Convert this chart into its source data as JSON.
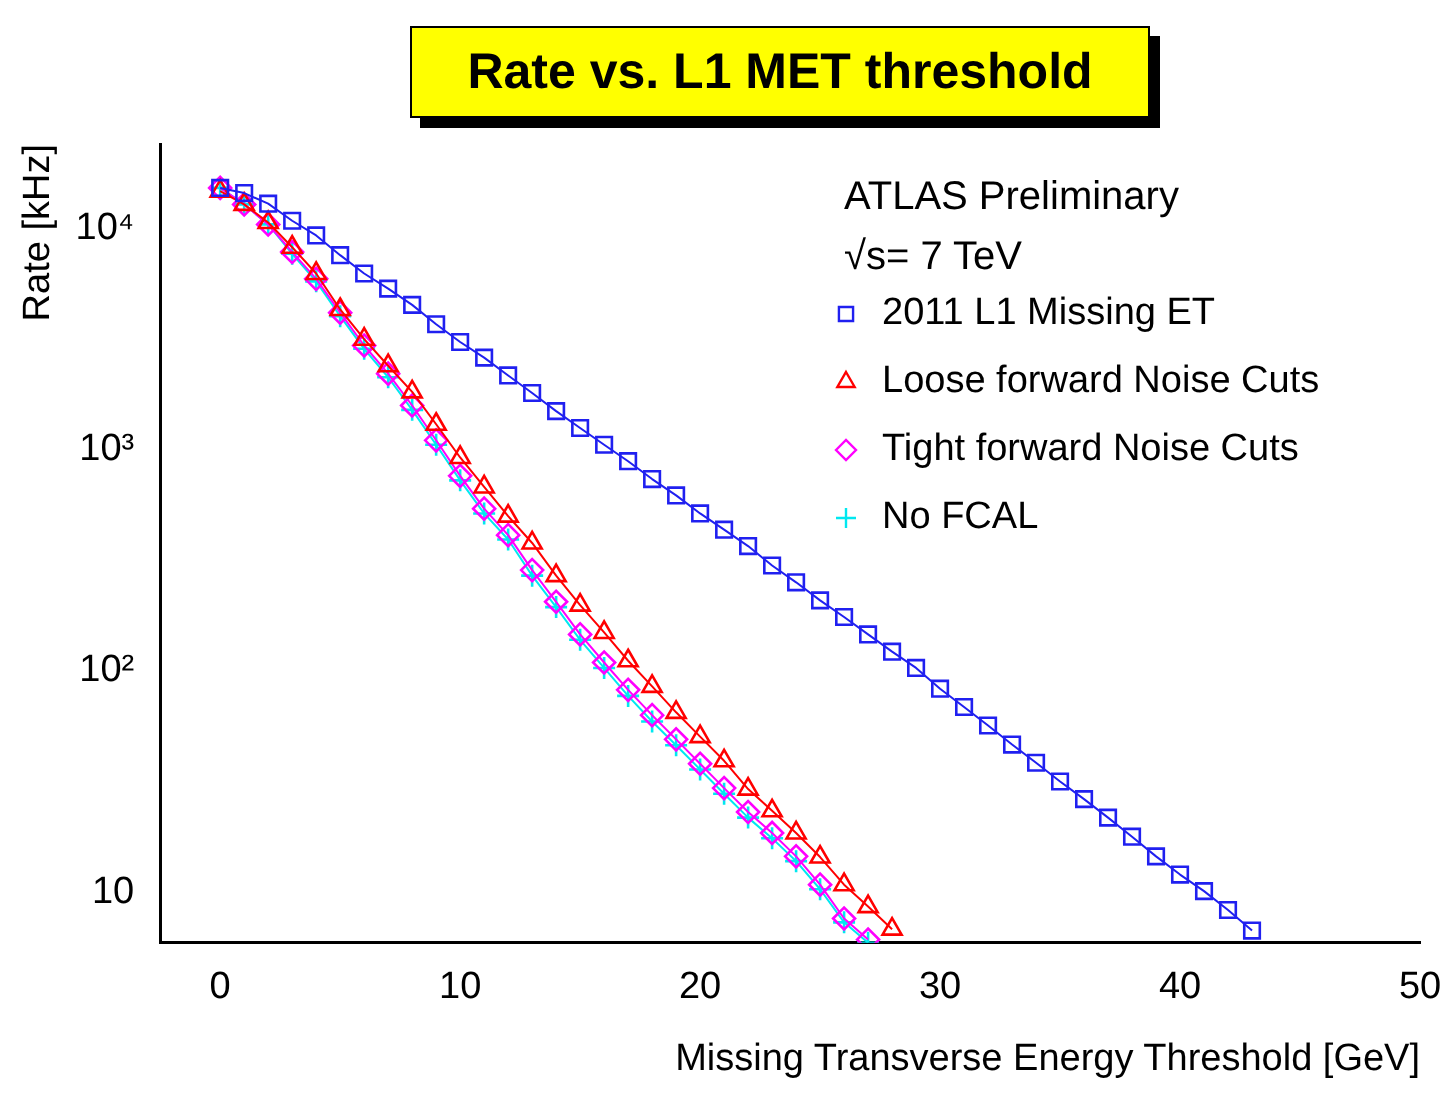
{
  "chart_data": {
    "type": "line",
    "title": "Rate vs. L1 MET threshold",
    "xlabel": "Missing Transverse Energy Threshold [GeV]",
    "ylabel": "Rate [kHz]",
    "annotations": [
      "ATLAS Preliminary",
      "√s= 7 TeV"
    ],
    "log": "y",
    "grid": false,
    "legend": "top right",
    "line_style": "solid",
    "xlim": [
      -2.5,
      50
    ],
    "xticks": [
      0,
      10,
      20,
      30,
      40,
      50
    ],
    "ylim": [
      5.9,
      24000
    ],
    "yticks": [
      10,
      {
        "value": 100,
        "label": "10²"
      },
      {
        "value": 1000,
        "label": "10³"
      },
      {
        "value": 10000,
        "label": "10⁴"
      }
    ],
    "series": [
      {
        "name": "2011 L1 Missing ET",
        "color": "#2020f0",
        "marker": "square",
        "x": [
          0,
          1,
          2,
          3,
          4,
          5,
          6,
          7,
          8,
          9,
          10,
          11,
          12,
          13,
          14,
          15,
          16,
          17,
          18,
          19,
          20,
          21,
          22,
          23,
          24,
          25,
          26,
          27,
          28,
          29,
          30,
          31,
          32,
          33,
          34,
          35,
          36,
          37,
          38,
          39,
          40,
          41,
          42,
          43
        ],
        "values": [
          15200,
          14400,
          12900,
          10800,
          9270,
          7550,
          6240,
          5330,
          4500,
          3680,
          3060,
          2600,
          2160,
          1800,
          1490,
          1250,
          1050,
          885,
          735,
          620,
          514,
          434,
          366,
          299,
          251,
          208,
          175,
          146,
          122,
          103,
          83,
          68.6,
          56.6,
          46.4,
          38.4,
          31.6,
          26.3,
          21.7,
          17.8,
          14.5,
          12.0,
          10.1,
          8.3,
          6.7
        ]
      },
      {
        "name": "Loose forward Noise Cuts",
        "color": "#ff0000",
        "marker": "triangle",
        "x": [
          0,
          1,
          2,
          3,
          4,
          5,
          6,
          7,
          8,
          9,
          10,
          11,
          12,
          13,
          14,
          15,
          16,
          17,
          18,
          19,
          20,
          21,
          22,
          23,
          24,
          25,
          26,
          27,
          28
        ],
        "values": [
          14700,
          12800,
          10600,
          8200,
          6240,
          4290,
          3150,
          2390,
          1820,
          1300,
          920,
          677,
          500,
          378,
          269,
          198,
          149,
          111,
          85,
          64.9,
          50.4,
          39.2,
          29.2,
          23.3,
          18.5,
          14.4,
          10.8,
          8.6,
          6.8
        ]
      },
      {
        "name": "Tight forward Noise Cuts",
        "color": "#ff00ff",
        "marker": "diamond",
        "x": [
          0,
          1,
          2,
          3,
          4,
          5,
          6,
          7,
          8,
          9,
          10,
          11,
          12,
          13,
          14,
          15,
          16,
          17,
          18,
          19,
          20,
          21,
          22,
          23,
          24,
          25,
          26,
          27
        ],
        "values": [
          15200,
          12800,
          10400,
          7800,
          5900,
          4150,
          2950,
          2200,
          1580,
          1100,
          760,
          540,
          410,
          285,
          205,
          146,
          109,
          82,
          63,
          49,
          38,
          29.5,
          23,
          18.5,
          14.5,
          10.8,
          7.6,
          6.1
        ]
      },
      {
        "name": "No FCAL",
        "color": "#00e8f0",
        "marker": "cross",
        "x": [
          0,
          1,
          2,
          3,
          4,
          5,
          6,
          7,
          8,
          9,
          10,
          11,
          12,
          13,
          14,
          15,
          16,
          17,
          18,
          19,
          20,
          21,
          22,
          23,
          24,
          25,
          26,
          27
        ],
        "values": [
          15200,
          12800,
          10400,
          7660,
          5750,
          4000,
          2850,
          2120,
          1510,
          1050,
          725,
          514,
          392,
          269,
          194,
          138,
          103,
          77,
          59,
          46.1,
          35.8,
          27.8,
          21.7,
          17.5,
          13.8,
          10.3,
          7.3,
          5.9
        ]
      }
    ]
  }
}
